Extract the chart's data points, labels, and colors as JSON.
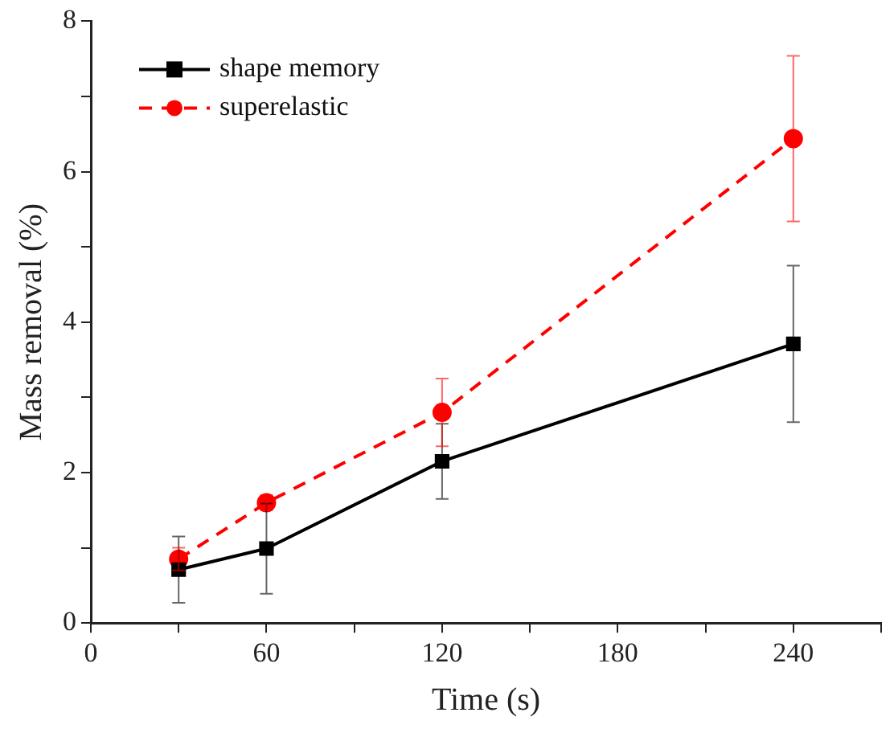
{
  "chart_data": {
    "type": "line",
    "xlabel": "Time (s)",
    "ylabel": "Mass removal (%)",
    "x": [
      30,
      60,
      120,
      240
    ],
    "xlim": [
      0,
      270
    ],
    "xticks": [
      0,
      {
        "value": 30,
        "label": null
      },
      60,
      {
        "value": 90,
        "label": null
      },
      120,
      {
        "value": 150,
        "label": null
      },
      180,
      {
        "value": 210,
        "label": null
      },
      240,
      {
        "value": 270,
        "label": null
      }
    ],
    "ylim": [
      0,
      8
    ],
    "yticks": [
      0,
      {
        "value": 1,
        "label": null
      },
      2,
      {
        "value": 3,
        "label": null
      },
      4,
      {
        "value": 5,
        "label": null
      },
      6,
      {
        "value": 7,
        "label": null
      },
      8
    ],
    "series": [
      {
        "name": "shape memory",
        "color": "#000000",
        "values": [
          0.71,
          0.99,
          2.15,
          3.71
        ],
        "errors": [
          0.44,
          0.6,
          0.5,
          1.04
        ],
        "marker": "square",
        "line_style": "solid"
      },
      {
        "name": "superelastic",
        "color": "#ff0000",
        "values": [
          0.85,
          1.6,
          2.8,
          6.44
        ],
        "errors": [
          0.15,
          0.1,
          0.45,
          1.1
        ],
        "marker": "circle",
        "line_style": "dashed"
      }
    ],
    "legend": "top left",
    "grid": false
  }
}
